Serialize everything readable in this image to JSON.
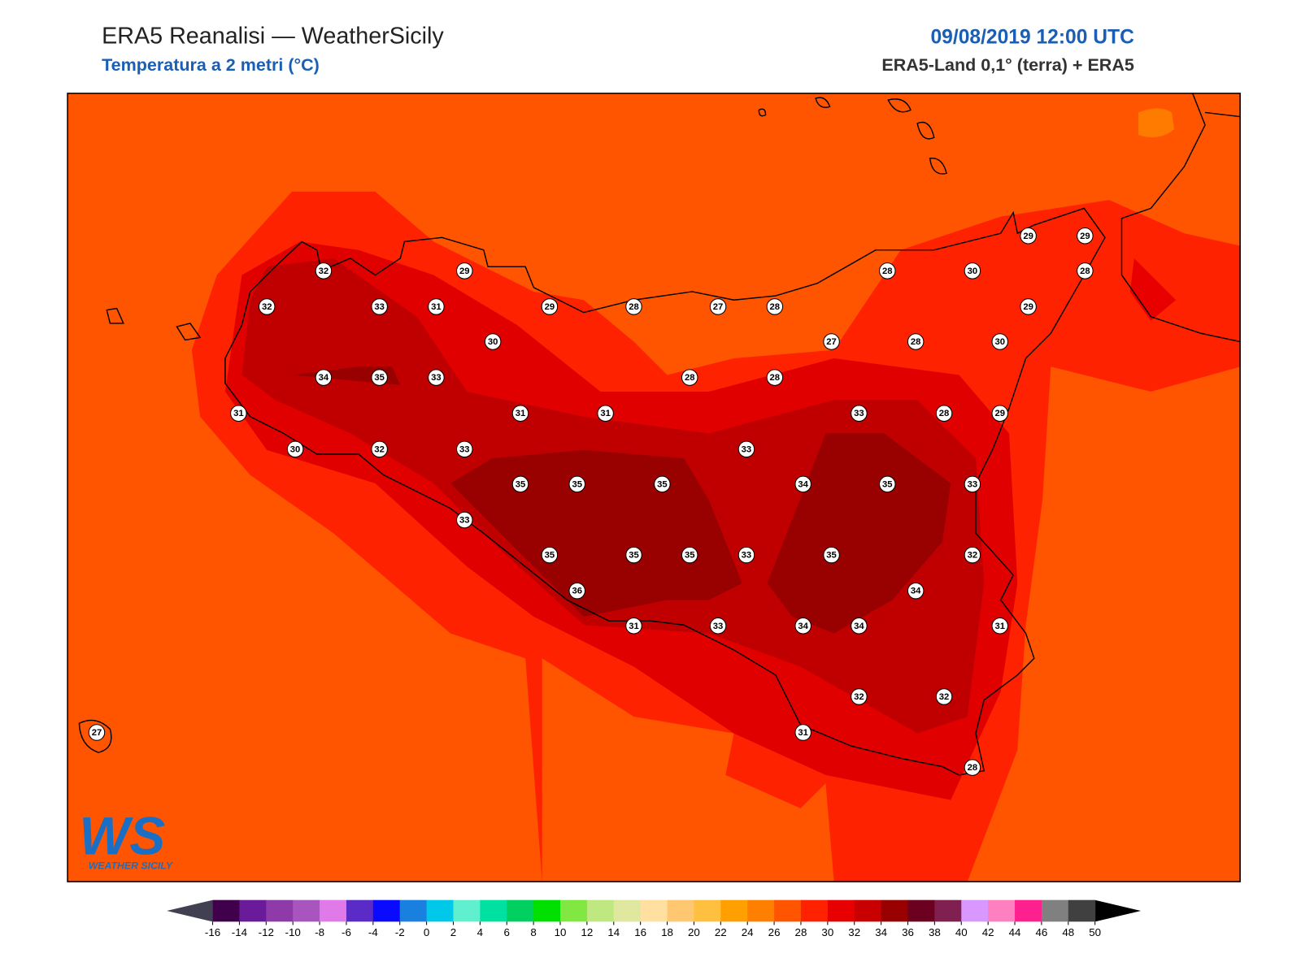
{
  "header": {
    "title": "ERA5 Reanalisi — WeatherSicily",
    "subtitle": "Temperatura a 2 metri (°C)",
    "datetime": "09/08/2019 12:00 UTC",
    "source": "ERA5-Land 0,1° (terra) + ERA5"
  },
  "stations": [
    32,
    32,
    33,
    31,
    29,
    29,
    28,
    27,
    28,
    30,
    34,
    35,
    33,
    31,
    30,
    32,
    33,
    31,
    31,
    28,
    28,
    27,
    28,
    28,
    30,
    29,
    29,
    28,
    29,
    30,
    28,
    29,
    33,
    33,
    35,
    35,
    35,
    34,
    35,
    33,
    33,
    35,
    35,
    35,
    33,
    35,
    32,
    36,
    34,
    31,
    33,
    34,
    34,
    31,
    32,
    32,
    31,
    28,
    27
  ],
  "logo": {
    "mark": "WS",
    "name": "WEATHER SICILY"
  },
  "colorbar": {
    "ticks": [
      -16,
      -14,
      -12,
      -10,
      -8,
      -6,
      -4,
      -2,
      0,
      2,
      4,
      6,
      8,
      10,
      12,
      14,
      16,
      18,
      20,
      22,
      24,
      26,
      28,
      30,
      32,
      34,
      36,
      38,
      40,
      42,
      44,
      46,
      48,
      50
    ],
    "colors": [
      "#40004b",
      "#6a1b9a",
      "#8e3aa8",
      "#a855c0",
      "#e07ae8",
      "#5b2bc8",
      "#0a0aff",
      "#1a80e0",
      "#00c8e8",
      "#60f0d0",
      "#00e0a0",
      "#00d060",
      "#00e000",
      "#80e840",
      "#c0e880",
      "#e0e8a0",
      "#ffe0a0",
      "#ffc870",
      "#ffc040",
      "#ffa000",
      "#ff8000",
      "#ff5500",
      "#ff2200",
      "#e80000",
      "#c80000",
      "#990000",
      "#6b0020",
      "#802050",
      "#d898ff",
      "#ff80c0",
      "#ff2090",
      "#808080",
      "#404040"
    ],
    "under_color": "#404050",
    "over_color": "#000000"
  }
}
